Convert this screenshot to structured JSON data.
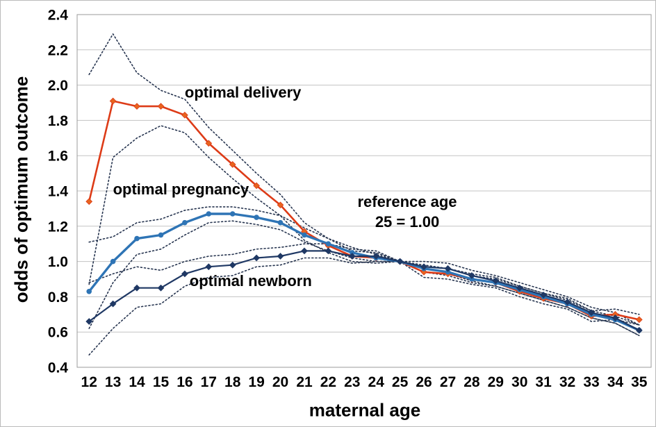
{
  "figure": {
    "background": "#ffffff",
    "grid_color": "#c3c3c3",
    "border_color": "#9b9b9b",
    "text_color": "#000000"
  },
  "chart_data": {
    "type": "line",
    "title": "",
    "xlabel": "maternal age",
    "ylabel": "odds of optimum outcome",
    "x": [
      12,
      13,
      14,
      15,
      16,
      17,
      18,
      19,
      20,
      21,
      22,
      23,
      24,
      25,
      26,
      27,
      28,
      29,
      30,
      31,
      32,
      33,
      34,
      35
    ],
    "xlim": [
      12,
      35
    ],
    "ylim": [
      0.4,
      2.4
    ],
    "ytick_step": 0.2,
    "grid": "horizontal",
    "legend": "none",
    "series": [
      {
        "name": "optimal delivery",
        "color": "#dd3b17",
        "style": "solid",
        "width": 2.6,
        "marker": "diamond",
        "marker_color": "#e8641f",
        "values": [
          1.34,
          1.91,
          1.88,
          1.88,
          1.83,
          1.67,
          1.55,
          1.43,
          1.32,
          1.17,
          1.09,
          1.03,
          1.02,
          1.0,
          0.94,
          0.93,
          0.9,
          0.88,
          0.83,
          0.79,
          0.76,
          0.69,
          0.7,
          0.67
        ]
      },
      {
        "name": "optimal delivery CI upper",
        "color": "#26344f",
        "style": "dotted",
        "width": 1.6,
        "marker": "none",
        "values": [
          2.06,
          2.29,
          2.07,
          1.97,
          1.92,
          1.76,
          1.63,
          1.5,
          1.38,
          1.22,
          1.13,
          1.06,
          1.05,
          1.0,
          0.97,
          0.96,
          0.93,
          0.91,
          0.86,
          0.82,
          0.79,
          0.72,
          0.73,
          0.7
        ]
      },
      {
        "name": "optimal delivery CI lower",
        "color": "#26344f",
        "style": "dotted",
        "width": 1.6,
        "marker": "none",
        "values": [
          0.87,
          1.59,
          1.7,
          1.77,
          1.73,
          1.59,
          1.47,
          1.36,
          1.26,
          1.12,
          1.05,
          1.0,
          0.99,
          1.0,
          0.91,
          0.9,
          0.87,
          0.85,
          0.8,
          0.76,
          0.73,
          0.66,
          0.67,
          0.64
        ]
      },
      {
        "name": "optimal pregnancy",
        "color": "#2e74b5",
        "style": "solid",
        "width": 3.4,
        "marker": "circle",
        "marker_color": "#2e74b5",
        "values": [
          0.83,
          1.0,
          1.13,
          1.15,
          1.22,
          1.27,
          1.27,
          1.25,
          1.22,
          1.15,
          1.1,
          1.05,
          1.02,
          1.0,
          0.96,
          0.94,
          0.9,
          0.88,
          0.84,
          0.8,
          0.76,
          0.7,
          0.67,
          0.61
        ]
      },
      {
        "name": "optimal pregnancy CI upper",
        "color": "#26344f",
        "style": "dotted",
        "width": 1.6,
        "marker": "none",
        "values": [
          1.11,
          1.14,
          1.22,
          1.24,
          1.29,
          1.31,
          1.31,
          1.29,
          1.26,
          1.19,
          1.13,
          1.08,
          1.04,
          1.0,
          0.98,
          0.96,
          0.92,
          0.9,
          0.86,
          0.82,
          0.78,
          0.72,
          0.69,
          0.64
        ]
      },
      {
        "name": "optimal pregnancy CI lower",
        "color": "#26344f",
        "style": "dotted",
        "width": 1.6,
        "marker": "none",
        "values": [
          0.62,
          0.88,
          1.04,
          1.07,
          1.15,
          1.22,
          1.23,
          1.21,
          1.18,
          1.11,
          1.06,
          1.02,
          1.0,
          1.0,
          0.94,
          0.92,
          0.88,
          0.86,
          0.82,
          0.78,
          0.74,
          0.68,
          0.65,
          0.58
        ]
      },
      {
        "name": "optimal newborn",
        "color": "#1f3864",
        "style": "solid",
        "width": 2.2,
        "marker": "diamond",
        "marker_color": "#1f3864",
        "values": [
          0.66,
          0.76,
          0.85,
          0.85,
          0.93,
          0.97,
          0.98,
          1.02,
          1.03,
          1.06,
          1.06,
          1.03,
          1.03,
          1.0,
          0.97,
          0.96,
          0.92,
          0.89,
          0.85,
          0.81,
          0.77,
          0.71,
          0.68,
          0.61
        ]
      },
      {
        "name": "optimal newborn CI upper",
        "color": "#26344f",
        "style": "dotted",
        "width": 1.6,
        "marker": "none",
        "values": [
          0.88,
          0.93,
          0.97,
          0.95,
          1.0,
          1.03,
          1.04,
          1.07,
          1.08,
          1.1,
          1.1,
          1.07,
          1.06,
          1.0,
          1.0,
          0.99,
          0.95,
          0.92,
          0.88,
          0.84,
          0.8,
          0.74,
          0.71,
          0.64
        ]
      },
      {
        "name": "optimal newborn CI lower",
        "color": "#26344f",
        "style": "dotted",
        "width": 1.6,
        "marker": "none",
        "values": [
          0.47,
          0.62,
          0.74,
          0.76,
          0.86,
          0.91,
          0.92,
          0.97,
          0.98,
          1.02,
          1.02,
          0.99,
          1.0,
          1.0,
          0.94,
          0.93,
          0.89,
          0.86,
          0.82,
          0.78,
          0.74,
          0.68,
          0.65,
          0.58
        ]
      }
    ],
    "annotations": [
      {
        "lines": [
          "optimal delivery"
        ],
        "x": 16.0,
        "y": 1.93,
        "anchor": "start"
      },
      {
        "lines": [
          "optimal pregnancy"
        ],
        "x": 13.0,
        "y": 1.38,
        "anchor": "start"
      },
      {
        "lines": [
          "optimal newborn"
        ],
        "x": 16.2,
        "y": 0.86,
        "anchor": "start"
      },
      {
        "lines": [
          "reference age",
          "25 = 1.00"
        ],
        "x": 25.3,
        "y": 1.31,
        "anchor": "middle"
      }
    ]
  }
}
